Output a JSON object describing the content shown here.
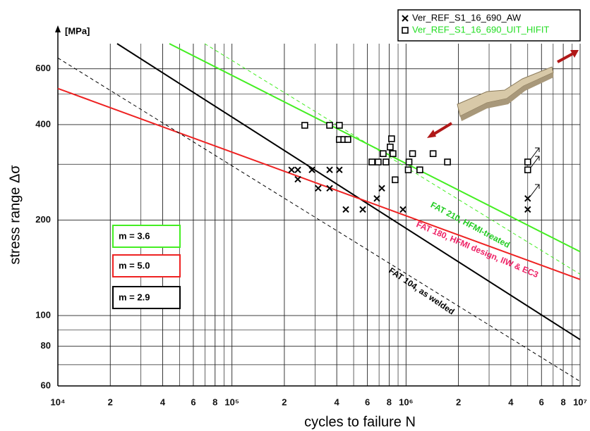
{
  "chart_data": {
    "type": "scatter",
    "x_label": "cycles to failure N",
    "y_label": "stress range Δσ",
    "y_unit": "[MPa]",
    "log_x": true,
    "log_y": true,
    "grid": true,
    "xlim": [
      10000,
      10000000
    ],
    "ylim": [
      60,
      720
    ],
    "xticks": [
      {
        "value": 10000,
        "label": "10⁴"
      },
      {
        "value": 20000,
        "label": "2"
      },
      {
        "value": 40000,
        "label": "4"
      },
      {
        "value": 60000,
        "label": "6"
      },
      {
        "value": 80000,
        "label": "8"
      },
      {
        "value": 100000,
        "label": "10⁵"
      },
      {
        "value": 200000,
        "label": "2"
      },
      {
        "value": 400000,
        "label": "4"
      },
      {
        "value": 600000,
        "label": "6"
      },
      {
        "value": 800000,
        "label": "8"
      },
      {
        "value": 1000000,
        "label": "10⁶"
      },
      {
        "value": 2000000,
        "label": "2"
      },
      {
        "value": 4000000,
        "label": "4"
      },
      {
        "value": 6000000,
        "label": "6"
      },
      {
        "value": 8000000,
        "label": "8"
      },
      {
        "value": 10000000,
        "label": "10⁷"
      }
    ],
    "xminor": [
      30000,
      50000,
      70000,
      90000,
      300000,
      500000,
      700000,
      900000,
      3000000,
      5000000,
      7000000,
      9000000
    ],
    "yticks": [
      60,
      80,
      100,
      200,
      400,
      600
    ],
    "yminor": [
      70,
      90,
      300,
      500
    ],
    "series": [
      {
        "name": "Ver_REF_S1_16_690_AW",
        "color": "#000000",
        "label_color": "#000000",
        "marker": "x",
        "x": [
          220000,
          239000,
          239000,
          288000,
          313000,
          364000,
          364000,
          414000,
          451000,
          564000,
          680000,
          726000,
          960000,
          5000000,
          5000000
        ],
        "values": [
          288,
          288,
          269,
          288,
          252,
          288,
          252,
          288,
          216,
          216,
          234,
          252,
          216,
          234,
          216
        ]
      },
      {
        "name": "Ver_REF_S1_16_690_UIT_HIFIT",
        "color": "#000000",
        "label_color": "#22dd22",
        "marker": "square",
        "x": [
          262000,
          364000,
          414000,
          414000,
          439000,
          463000,
          637000,
          692000,
          739000,
          767000,
          811000,
          826000,
          842000,
          866000,
          1030000,
          1040000,
          1090000,
          1200000,
          1430000,
          1730000,
          5000000,
          5000000
        ],
        "values": [
          398,
          398,
          398,
          359,
          359,
          359,
          305,
          305,
          324,
          305,
          340,
          361,
          324,
          268,
          288,
          305,
          324,
          288,
          324,
          305,
          305,
          288
        ]
      }
    ],
    "curves": [
      {
        "x": [
          21900,
          10000000
        ],
        "values": [
          720,
          84
        ],
        "color": "#000000",
        "dash": false
      },
      {
        "x": [
          43700,
          10000000
        ],
        "values": [
          720,
          159
        ],
        "color": "#44ee22",
        "dash": false
      },
      {
        "x": [
          69700,
          10000000
        ],
        "values": [
          720,
          135
        ],
        "color": "#44ee22",
        "dash": true
      },
      {
        "x": [
          10000,
          10000000
        ],
        "values": [
          520,
          130
        ],
        "color": "#ee2222",
        "dash": false
      },
      {
        "x": [
          10000,
          10000000
        ],
        "values": [
          649,
          62
        ],
        "color": "#000000",
        "dash": true
      }
    ],
    "annotations": [
      {
        "text": "FAT 210, HFMI-treated",
        "color": "#22cc22"
      },
      {
        "text": "FAT 180, HFMI design, IIW & EC3",
        "color": "#ee2266"
      },
      {
        "text": "FAT 104, as welded",
        "color": "#000000"
      }
    ],
    "slope_boxes": [
      {
        "text": "m = 3.6",
        "color": "#44ee22"
      },
      {
        "text": "m = 5.0",
        "color": "#ee2222"
      },
      {
        "text": "m = 2.9",
        "color": "#000000"
      }
    ]
  }
}
